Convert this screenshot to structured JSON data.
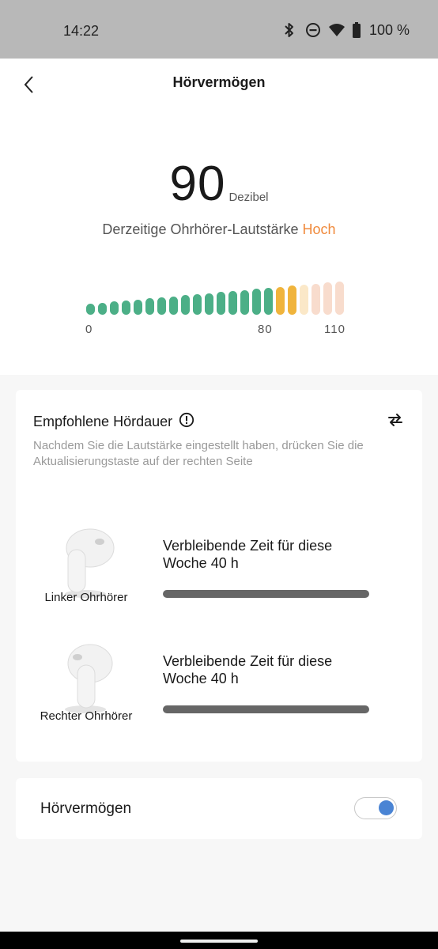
{
  "status": {
    "time": "14:22",
    "battery_text": "100 %",
    "icons": [
      "bluetooth-icon",
      "do-not-disturb-icon",
      "wifi-icon",
      "battery-icon"
    ]
  },
  "header": {
    "title": "Hörvermögen",
    "back_icon": "back-arrow-icon"
  },
  "volume": {
    "value": "90",
    "unit": "Dezibel",
    "label": "Derzeitige Ohrhörer-Lautstärke",
    "level": "Hoch",
    "level_color": "#f08a3c",
    "scale_labels": [
      "0",
      "80",
      "110"
    ],
    "segment_colors": {
      "safe": "#4caf87",
      "elevated": "#f0b43c",
      "high_light": "#fbe8c8",
      "high": "#f8dccd"
    }
  },
  "listening": {
    "title": "Empfohlene Hördauer",
    "info_icon": "info-icon",
    "refresh_icon": "refresh-icon",
    "description": "Nachdem Sie die Lautstärke eingestellt haben, drücken Sie die Aktualisierungstaste auf der rechten Seite",
    "earbuds": [
      {
        "name": "Linker Ohrhörer",
        "remaining": "Verbleibende Zeit für diese Woche 40 h",
        "progress": 1.0
      },
      {
        "name": "Rechter Ohrhörer",
        "remaining": "Verbleibende Zeit für diese Woche 40 h",
        "progress": 1.0
      }
    ]
  },
  "setting": {
    "label": "Hörvermögen",
    "enabled": true
  }
}
